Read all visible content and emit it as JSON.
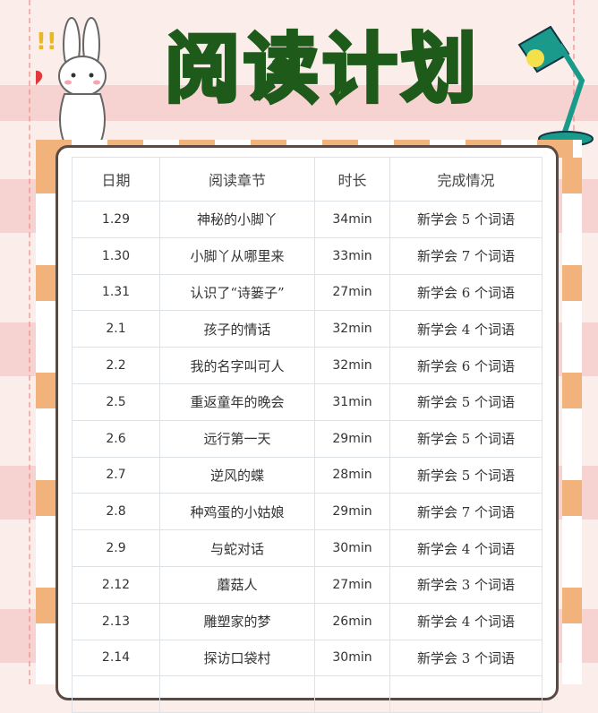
{
  "title": "阅读计划",
  "colors": {
    "title_fill": "#6cc24a",
    "stripe": "#f6d3d0",
    "checker": "#f2b27b"
  },
  "table": {
    "headers": [
      "日期",
      "阅读章节",
      "时长",
      "完成情况"
    ],
    "rows": [
      [
        "1.29",
        "神秘的小脚丫",
        "34min",
        "新学会 5 个词语"
      ],
      [
        "1.30",
        "小脚丫从哪里来",
        "33min",
        "新学会 7 个词语"
      ],
      [
        "1.31",
        "认识了“诗篓子”",
        "27min",
        "新学会 6 个词语"
      ],
      [
        "2.1",
        "孩子的情话",
        "32min",
        "新学会 4 个词语"
      ],
      [
        "2.2",
        "我的名字叫可人",
        "32min",
        "新学会 6 个词语"
      ],
      [
        "2.5",
        "重返童年的晚会",
        "31min",
        "新学会 5 个词语"
      ],
      [
        "2.6",
        "远行第一天",
        "29min",
        "新学会 5 个词语"
      ],
      [
        "2.7",
        "逆风的蝶",
        "28min",
        "新学会 5 个词语"
      ],
      [
        "2.8",
        "种鸡蛋的小姑娘",
        "29min",
        "新学会 7 个词语"
      ],
      [
        "2.9",
        "与蛇对话",
        "30min",
        "新学会 4 个词语"
      ],
      [
        "2.12",
        "蘑菇人",
        "27min",
        "新学会 3 个词语"
      ],
      [
        "2.13",
        "雕塑家的梦",
        "26min",
        "新学会 4 个词语"
      ],
      [
        "2.14",
        "探访口袋村",
        "30min",
        "新学会 3 个词语"
      ],
      [
        "",
        "",
        "",
        ""
      ]
    ]
  }
}
